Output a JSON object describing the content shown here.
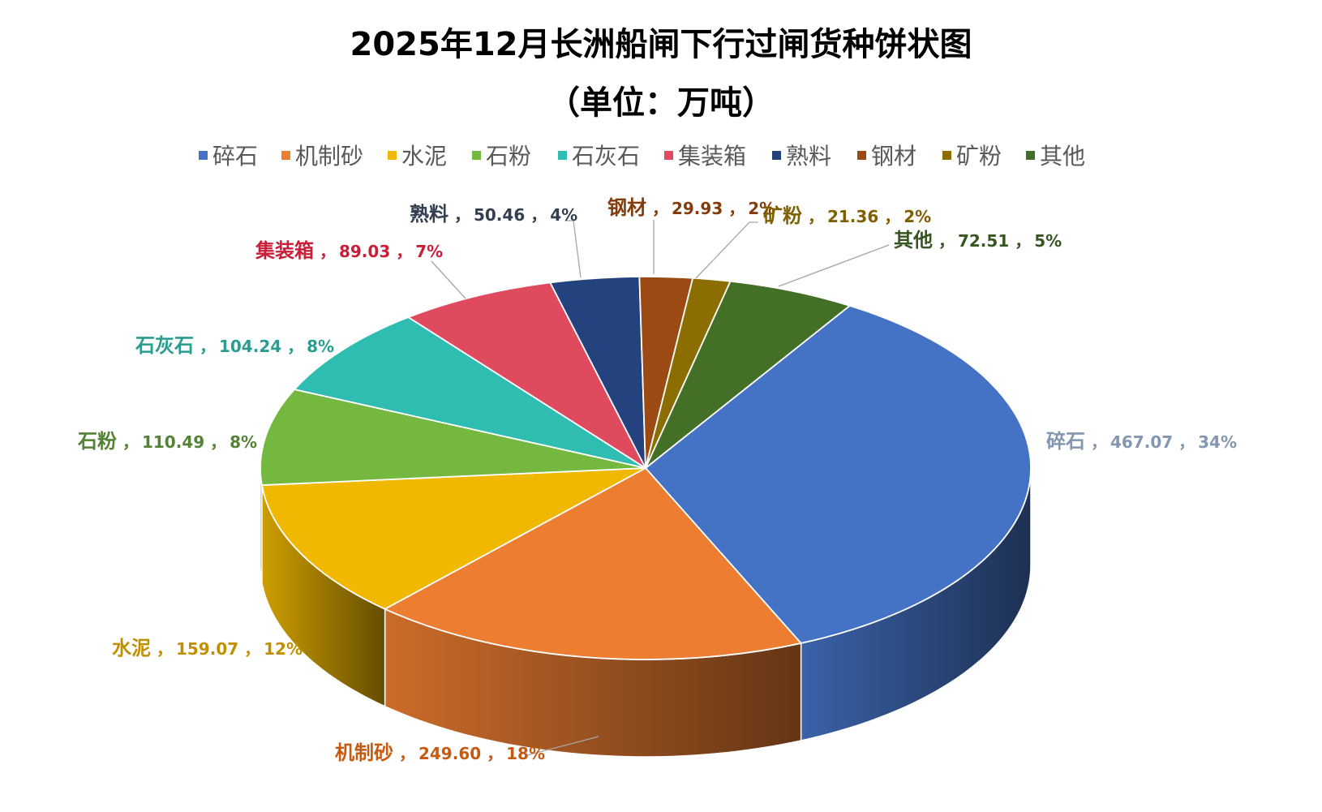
{
  "chart_data": {
    "type": "pie",
    "title": "2025年12月长洲船闸下行过闸货种饼状图",
    "subtitle": "（单位：万吨）",
    "legend_position": "top",
    "label_separator": " ，",
    "slices": [
      {
        "name": "碎石",
        "value": 467.07,
        "percent": "34%",
        "color": "#4472C4",
        "label_color": "#8497B0"
      },
      {
        "name": "机制砂",
        "value": 249.6,
        "percent": "18%",
        "color": "#ED7D31",
        "label_color": "#C55A11"
      },
      {
        "name": "水泥",
        "value": 159.07,
        "percent": "12%",
        "color": "#F0B800",
        "label_color": "#BF9000"
      },
      {
        "name": "石粉",
        "value": 110.49,
        "percent": "8%",
        "color": "#75B840",
        "label_color": "#548235"
      },
      {
        "name": "石灰石",
        "value": 104.24,
        "percent": "8%",
        "color": "#2EBDB0",
        "label_color": "#2A9D93"
      },
      {
        "name": "集装箱",
        "value": 89.03,
        "percent": "7%",
        "color": "#E04A5E",
        "label_color": "#C81E37"
      },
      {
        "name": "熟料",
        "value": 50.46,
        "percent": "4%",
        "color": "#23427E",
        "label_color": "#333F50"
      },
      {
        "name": "钢材",
        "value": 29.93,
        "percent": "2%",
        "color": "#9A4A12",
        "label_color": "#843C0C"
      },
      {
        "name": "矿粉",
        "value": 21.36,
        "percent": "2%",
        "color": "#8C6D00",
        "label_color": "#7F6000"
      },
      {
        "name": "其他",
        "value": 72.51,
        "percent": "5%",
        "color": "#437026",
        "label_color": "#375623"
      }
    ]
  }
}
